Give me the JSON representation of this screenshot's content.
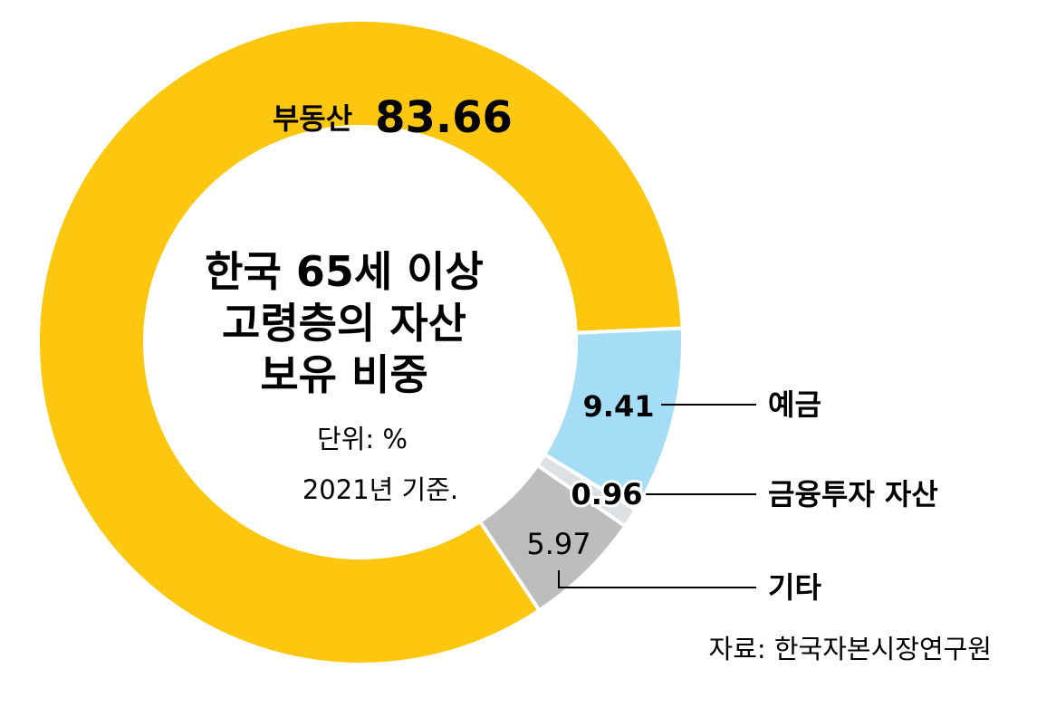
{
  "chart_data": {
    "type": "pie",
    "title_lines": [
      "한국 65세 이상",
      "고령층의 자산",
      "보유 비중"
    ],
    "unit": "단위: %",
    "base_year": "2021년 기준.",
    "categories": [
      "부동산",
      "예금",
      "금융투자 자산",
      "기타"
    ],
    "values": [
      83.66,
      9.41,
      0.96,
      5.97
    ],
    "value_labels": [
      "83.66",
      "9.41",
      "0.96",
      "5.97"
    ],
    "colors": [
      "#FCC70E",
      "#A5DDF6",
      "#DDE1E4",
      "#BDBDBD"
    ]
  },
  "source": "자료: 한국자본시장연구원"
}
